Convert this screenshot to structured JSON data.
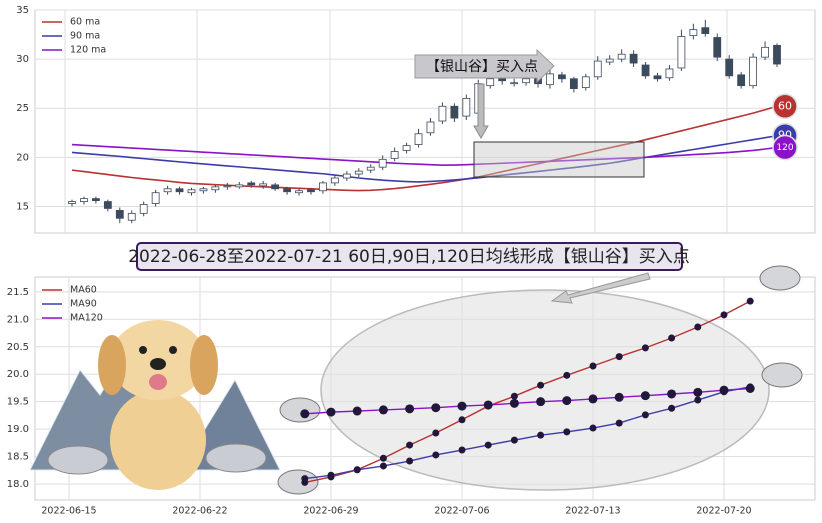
{
  "banner": "2022-06-28至2022-07-21 60日,90日,120日均线形成【银山谷】买入点",
  "chart_data": [
    {
      "type": "candlestick",
      "annotation": "【银山谷】买入点",
      "ylim": [
        12.3,
        35
      ],
      "yticks": [
        15,
        20,
        25,
        30,
        35
      ],
      "grid": true,
      "legend": "upper left",
      "up_color": "#ffffff",
      "down_color": "#3c4a5e",
      "open": [
        15.3,
        15.5,
        15.8,
        15.5,
        14.6,
        13.6,
        14.3,
        15.3,
        16.5,
        16.8,
        16.4,
        16.6,
        16.7,
        17.0,
        17.0,
        17.4,
        17.1,
        17.2,
        16.8,
        16.4,
        16.7,
        16.6,
        17.4,
        17.9,
        18.3,
        18.7,
        19.0,
        19.9,
        20.7,
        21.3,
        22.5,
        23.7,
        25.2,
        24.2,
        24.5,
        27.3,
        28.1,
        27.6,
        27.6,
        28.1,
        27.4,
        28.4,
        28.0,
        27.1,
        28.2,
        29.7,
        30.0,
        30.5,
        29.4,
        28.3,
        28.1,
        29.1,
        32.4,
        33.2,
        32.2,
        30.0,
        28.4,
        27.3,
        30.2,
        31.4
      ],
      "high": [
        15.7,
        16.0,
        16.0,
        15.7,
        14.9,
        14.6,
        15.5,
        16.7,
        17.1,
        17.0,
        16.9,
        17.0,
        17.2,
        17.4,
        17.5,
        17.6,
        17.6,
        17.4,
        17.0,
        16.9,
        16.9,
        17.6,
        18.2,
        18.6,
        18.9,
        19.3,
        20.2,
        21.0,
        21.5,
        22.9,
        24.0,
        25.6,
        25.5,
        26.4,
        27.9,
        28.5,
        28.4,
        28.0,
        28.4,
        28.4,
        28.9,
        28.7,
        28.2,
        28.5,
        30.3,
        30.4,
        31.0,
        30.9,
        29.7,
        28.6,
        29.4,
        33.0,
        33.6,
        34.0,
        32.6,
        30.4,
        28.7,
        30.6,
        31.8,
        31.6
      ],
      "low": [
        15.0,
        15.2,
        15.3,
        14.5,
        13.3,
        13.3,
        14.0,
        15.0,
        16.2,
        16.2,
        16.1,
        16.3,
        16.4,
        16.7,
        16.8,
        16.9,
        16.8,
        16.6,
        16.2,
        16.1,
        16.2,
        16.3,
        17.1,
        17.6,
        18.0,
        18.4,
        18.7,
        19.6,
        20.4,
        21.0,
        22.2,
        23.4,
        23.6,
        23.8,
        24.2,
        27.0,
        27.4,
        27.2,
        27.3,
        27.1,
        27.0,
        27.6,
        26.6,
        26.8,
        27.9,
        29.4,
        29.7,
        29.2,
        28.0,
        27.7,
        27.8,
        28.8,
        32.0,
        32.3,
        29.8,
        28.0,
        27.0,
        27.0,
        29.9,
        29.2
      ],
      "close": [
        15.5,
        15.8,
        15.6,
        14.8,
        13.8,
        14.3,
        15.2,
        16.4,
        16.8,
        16.5,
        16.7,
        16.8,
        17.0,
        17.1,
        17.2,
        17.2,
        17.3,
        16.8,
        16.5,
        16.6,
        16.5,
        17.4,
        17.9,
        18.3,
        18.6,
        19.0,
        19.8,
        20.6,
        21.2,
        22.4,
        23.6,
        25.2,
        24.0,
        26.0,
        27.5,
        28.0,
        27.8,
        27.6,
        28.0,
        27.5,
        28.5,
        28.0,
        27.0,
        28.2,
        29.8,
        30.0,
        30.5,
        29.6,
        28.3,
        28.0,
        29.0,
        32.3,
        33.0,
        32.6,
        30.2,
        28.3,
        27.3,
        30.2,
        31.2,
        29.5
      ],
      "series": [
        {
          "name": "60 ma",
          "label": "60",
          "color": "#b83232",
          "values": [
            18.7,
            18.55,
            18.4,
            18.25,
            18.1,
            17.95,
            17.82,
            17.7,
            17.58,
            17.45,
            17.35,
            17.28,
            17.22,
            17.16,
            17.1,
            17.05,
            17.0,
            16.95,
            16.9,
            16.85,
            16.8,
            16.75,
            16.7,
            16.65,
            16.62,
            16.65,
            16.72,
            16.82,
            16.95,
            17.1,
            17.26,
            17.42,
            17.6,
            17.8,
            18.0,
            18.27,
            18.54,
            18.81,
            19.08,
            19.35,
            19.62,
            19.89,
            20.16,
            20.43,
            20.7,
            20.97,
            21.24,
            21.5,
            21.8,
            22.1,
            22.4,
            22.7,
            23.0,
            23.3,
            23.6,
            23.9,
            24.2,
            24.5,
            24.85,
            25.2
          ]
        },
        {
          "name": "90 ma",
          "label": "90",
          "color": "#3c3ca8",
          "values": [
            20.5,
            20.4,
            20.3,
            20.2,
            20.1,
            19.98,
            19.87,
            19.76,
            19.65,
            19.54,
            19.43,
            19.33,
            19.23,
            19.13,
            19.03,
            18.93,
            18.83,
            18.73,
            18.63,
            18.53,
            18.43,
            18.33,
            18.2,
            18.05,
            17.9,
            17.78,
            17.68,
            17.6,
            17.54,
            17.5,
            17.55,
            17.62,
            17.7,
            17.8,
            17.92,
            18.05,
            18.18,
            18.31,
            18.44,
            18.57,
            18.7,
            18.83,
            18.96,
            19.1,
            19.25,
            19.4,
            19.6,
            19.8,
            20.0,
            20.2,
            20.4,
            20.6,
            20.8,
            21.0,
            21.2,
            21.4,
            21.6,
            21.8,
            22.0,
            22.2
          ]
        },
        {
          "name": "120 ma",
          "label": "120",
          "color": "#8a12c8",
          "values": [
            21.3,
            21.23,
            21.16,
            21.09,
            21.02,
            20.95,
            20.88,
            20.81,
            20.74,
            20.67,
            20.6,
            20.53,
            20.46,
            20.39,
            20.32,
            20.25,
            20.18,
            20.11,
            20.04,
            19.97,
            19.9,
            19.83,
            19.76,
            19.69,
            19.62,
            19.55,
            19.48,
            19.41,
            19.35,
            19.3,
            19.25,
            19.2,
            19.22,
            19.25,
            19.3,
            19.35,
            19.4,
            19.45,
            19.5,
            19.55,
            19.6,
            19.65,
            19.7,
            19.75,
            19.8,
            19.85,
            19.9,
            19.95,
            20.0,
            20.07,
            20.14,
            20.21,
            20.28,
            20.35,
            20.42,
            20.5,
            20.6,
            20.7,
            20.85,
            21.0
          ]
        }
      ]
    },
    {
      "type": "line",
      "legend": "upper left",
      "grid": true,
      "ylim": [
        17.71,
        21.77
      ],
      "yticks": [
        {
          "value": 18,
          "label": "18.0"
        },
        18.5,
        {
          "value": 19,
          "label": "19.0"
        },
        19.5,
        {
          "value": 20,
          "label": "20.0"
        },
        20.5,
        {
          "value": 21,
          "label": "21.0"
        },
        21.5
      ],
      "categories": [
        "2022-06-15",
        null,
        null,
        null,
        null,
        "2022-06-22",
        null,
        null,
        null,
        null,
        "2022-06-29",
        null,
        null,
        null,
        null,
        "2022-07-06",
        null,
        null,
        null,
        null,
        "2022-07-13",
        null,
        null,
        null,
        null,
        "2022-07-20",
        null
      ],
      "series": [
        {
          "name": "MA60",
          "color": "#b83232",
          "values": [
            null,
            null,
            null,
            null,
            null,
            null,
            null,
            null,
            null,
            18.03,
            18.13,
            18.26,
            18.47,
            18.71,
            18.93,
            19.17,
            19.42,
            19.6,
            19.8,
            19.98,
            20.15,
            20.32,
            20.48,
            20.66,
            20.86,
            21.08,
            21.33
          ]
        },
        {
          "name": "MA90",
          "color": "#3c3ca8",
          "values": [
            null,
            null,
            null,
            null,
            null,
            null,
            null,
            null,
            null,
            18.1,
            18.16,
            18.26,
            18.33,
            18.42,
            18.53,
            18.62,
            18.71,
            18.8,
            18.89,
            18.95,
            19.02,
            19.11,
            19.26,
            19.38,
            19.53,
            19.68,
            19.77
          ]
        },
        {
          "name": "MA120",
          "color": "#8a12c8",
          "values": [
            null,
            null,
            null,
            null,
            null,
            null,
            null,
            null,
            null,
            19.28,
            19.31,
            19.33,
            19.35,
            19.37,
            19.39,
            19.42,
            19.44,
            19.47,
            19.5,
            19.52,
            19.55,
            19.58,
            19.61,
            19.64,
            19.67,
            19.71,
            19.74
          ]
        }
      ]
    }
  ]
}
